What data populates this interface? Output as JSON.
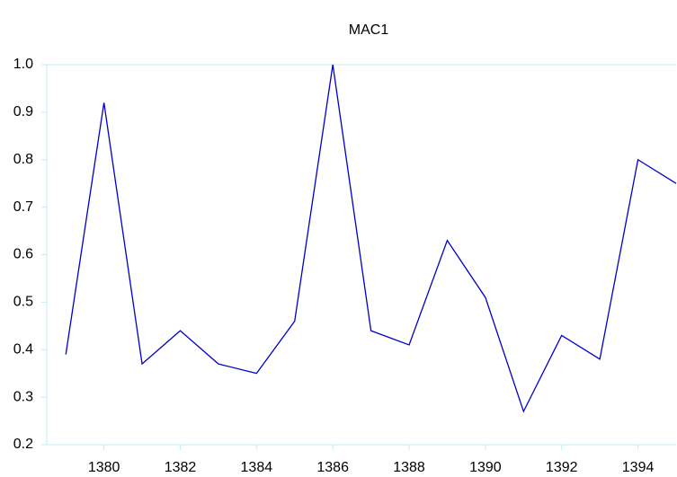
{
  "chart_data": {
    "type": "line",
    "title": "MAC1",
    "x": [
      1379,
      1380,
      1381,
      1382,
      1383,
      1384,
      1385,
      1386,
      1387,
      1388,
      1389,
      1390,
      1391,
      1392,
      1393,
      1394,
      1395
    ],
    "series": [
      {
        "name": "MAC1",
        "color": "#0000cc",
        "values": [
          0.39,
          0.92,
          0.37,
          0.44,
          0.37,
          0.35,
          0.46,
          1.0,
          0.44,
          0.41,
          0.63,
          0.51,
          0.27,
          0.43,
          0.38,
          0.8,
          0.75
        ]
      }
    ],
    "xlim": [
      1378.5,
      1395
    ],
    "xticks": [
      1380,
      1382,
      1384,
      1386,
      1388,
      1390,
      1392,
      1394
    ],
    "ylim": [
      0.2,
      1.0
    ],
    "yticks": [
      0.2,
      0.3,
      0.4,
      0.5,
      0.6,
      0.7,
      0.8,
      0.9,
      {
        "value": 1,
        "label": "1.0"
      }
    ]
  }
}
